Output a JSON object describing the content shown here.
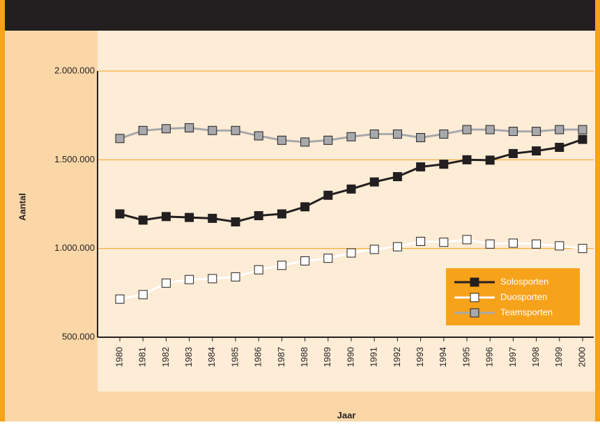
{
  "chart_data": {
    "type": "line",
    "x_label": "Jaar",
    "y_label": "Aantal",
    "categories": [
      "1980",
      "1981",
      "1982",
      "1983",
      "1984",
      "1985",
      "1986",
      "1987",
      "1988",
      "1989",
      "1990",
      "1991",
      "1992",
      "1993",
      "1994",
      "1995",
      "1996",
      "1997",
      "1998",
      "1999",
      "2000"
    ],
    "series": [
      {
        "name": "Solosporten",
        "color": "#231f20",
        "marker_fill": "#231f20",
        "values": [
          1195000,
          1160000,
          1180000,
          1175000,
          1170000,
          1150000,
          1185000,
          1195000,
          1235000,
          1300000,
          1335000,
          1375000,
          1405000,
          1460000,
          1475000,
          1500000,
          1498000,
          1535000,
          1550000,
          1570000,
          1615000
        ]
      },
      {
        "name": "Duosporten",
        "color": "#ffffff",
        "marker_fill": "#ffffff",
        "values": [
          715000,
          740000,
          805000,
          825000,
          830000,
          840000,
          880000,
          905000,
          930000,
          945000,
          975000,
          995000,
          1010000,
          1040000,
          1035000,
          1050000,
          1025000,
          1030000,
          1025000,
          1015000,
          1000000
        ]
      },
      {
        "name": "Teamsporten",
        "color": "#a7a9ac",
        "marker_fill": "#a7a9ac",
        "values": [
          1620000,
          1665000,
          1675000,
          1680000,
          1665000,
          1665000,
          1635000,
          1610000,
          1600000,
          1610000,
          1630000,
          1645000,
          1645000,
          1625000,
          1645000,
          1670000,
          1670000,
          1660000,
          1660000,
          1670000,
          1670000
        ]
      }
    ],
    "ylim": [
      500000,
      2000000
    ],
    "yticks": [
      {
        "value": 500000,
        "label": "500.000"
      },
      {
        "value": 1000000,
        "label": "1.000.000"
      },
      {
        "value": 1500000,
        "label": "1.500.000"
      },
      {
        "value": 2000000,
        "label": "2.000.000"
      }
    ],
    "grid": true,
    "legend": "lower right"
  }
}
